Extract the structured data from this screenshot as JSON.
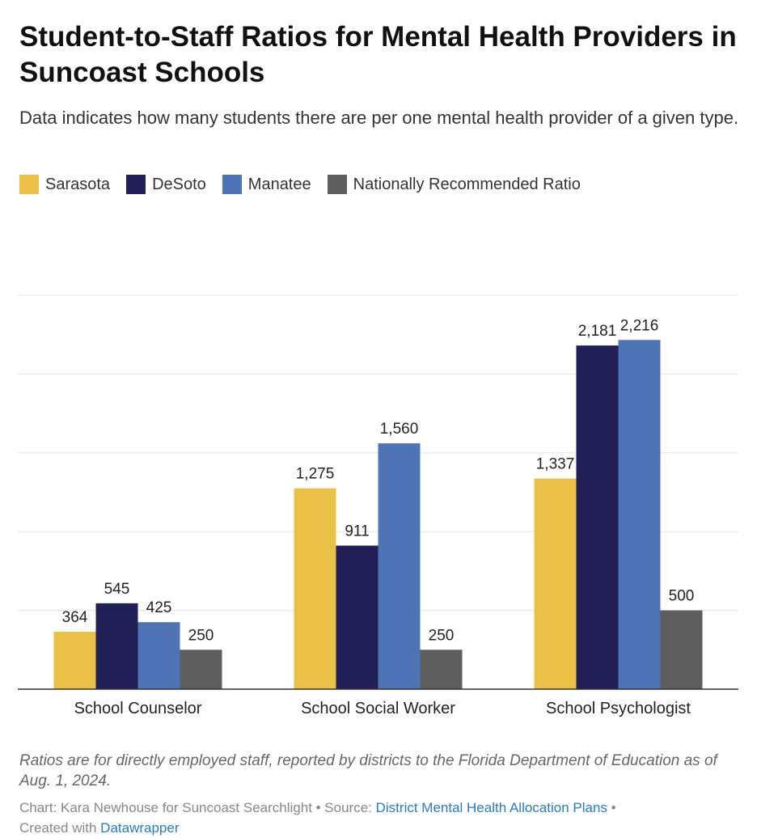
{
  "chart_data": {
    "type": "bar",
    "title": "Student-to-Staff Ratios for Mental Health Providers in Suncoast Schools",
    "subtitle": "Data indicates how many students there are per one mental health provider of a given type.",
    "categories": [
      "School Counselor",
      "School Social Worker",
      "School Psychologist"
    ],
    "series": [
      {
        "name": "Sarasota",
        "color": "#ebc047",
        "values": [
          364,
          1275,
          1337
        ],
        "labels": [
          "364",
          "1,275",
          "1,337"
        ]
      },
      {
        "name": "DeSoto",
        "color": "#211f56",
        "values": [
          545,
          911,
          2181
        ],
        "labels": [
          "545",
          "911",
          "2,181"
        ]
      },
      {
        "name": "Manatee",
        "color": "#4f74b6",
        "values": [
          425,
          1560,
          2216
        ],
        "labels": [
          "425",
          "1,560",
          "2,216"
        ]
      },
      {
        "name": "Nationally Recommended Ratio",
        "color": "#5e5e5e",
        "values": [
          250,
          250,
          500
        ],
        "labels": [
          "250",
          "250",
          "500"
        ]
      }
    ],
    "ylim": [
      0,
      2500
    ],
    "grid": true,
    "legend_position": "top-left",
    "xlabel": "",
    "ylabel": ""
  },
  "notes": "Ratios are for directly employed staff, reported by districts to the Florida Department of Education as of Aug. 1, 2024.",
  "credits": {
    "prefix": "Chart: Kara Newhouse for Suncoast Searchlight • Source: ",
    "source_link": "District Mental Health Allocation Plans",
    "suffix": " •",
    "created_with": "Created with ",
    "tool_link": "Datawrapper"
  }
}
